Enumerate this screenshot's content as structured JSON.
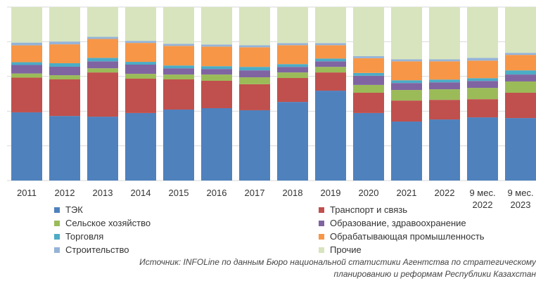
{
  "chart_data": {
    "type": "stacked_bar_100",
    "categories": [
      "2011",
      "2012",
      "2013",
      "2014",
      "2015",
      "2016",
      "2017",
      "2018",
      "2019",
      "2020",
      "2021",
      "2022",
      "9 мес. 2022",
      "9 мес. 2023"
    ],
    "series": [
      {
        "name": "ТЭК",
        "color": "#4f81bd",
        "values": [
          39.3,
          37.2,
          36.8,
          38.9,
          40.9,
          41.7,
          40.5,
          45.3,
          51.8,
          38.9,
          34,
          35.2,
          36.4,
          36
        ]
      },
      {
        "name": "Транспорт и связь",
        "color": "#c0504d",
        "values": [
          20,
          21.1,
          25.5,
          19.8,
          17.4,
          15.8,
          15,
          13.8,
          10.5,
          11.7,
          12.1,
          11.3,
          10.5,
          14.6
        ]
      },
      {
        "name": "Сельское хозяйство",
        "color": "#9bbb59",
        "values": [
          2.4,
          2.4,
          2.4,
          2.8,
          2.8,
          3.6,
          4,
          3.2,
          3.2,
          4.5,
          6.1,
          6.1,
          6.5,
          6.5
        ]
      },
      {
        "name": "Образование, здравоохранение",
        "color": "#8064a2",
        "values": [
          4.9,
          4.9,
          4,
          5.3,
          3.6,
          3.2,
          4,
          3.2,
          3.2,
          5.3,
          4,
          4,
          4,
          4
        ]
      },
      {
        "name": "Торговля",
        "color": "#4bacc6",
        "values": [
          1.6,
          2,
          2,
          1.6,
          1.6,
          1.6,
          2,
          1.6,
          1.6,
          1.6,
          1.6,
          1.6,
          1.6,
          2.4
        ]
      },
      {
        "name": "Обрабатывающая промышленность",
        "color": "#f79646",
        "values": [
          9.7,
          10.9,
          10.9,
          10.9,
          11.3,
          11.3,
          11.3,
          10.9,
          7.7,
          8.5,
          10.9,
          10.5,
          10.1,
          8.9
        ]
      },
      {
        "name": "Строительство",
        "color": "#95b3d7",
        "values": [
          1.6,
          1.6,
          1.2,
          1.2,
          1.2,
          1.2,
          1.2,
          1.2,
          1.2,
          1.2,
          1.2,
          1.2,
          1.6,
          1.2
        ]
      },
      {
        "name": "Прочие",
        "color": "#d7e4bd",
        "values": [
          20.5,
          19.9,
          17.2,
          19.5,
          21.2,
          21.6,
          22,
          20.8,
          20.8,
          28.3,
          30.1,
          30.1,
          29.3,
          26.4
        ]
      }
    ],
    "ylim": [
      0,
      100
    ],
    "yticks": [
      0,
      20,
      40,
      60,
      80,
      100
    ],
    "grid": true,
    "source": [
      "Источник: INFOLine по данным Бюро национальной статистики Агентства по стратегическому",
      "планированию и реформам Республики Казахстан"
    ]
  }
}
